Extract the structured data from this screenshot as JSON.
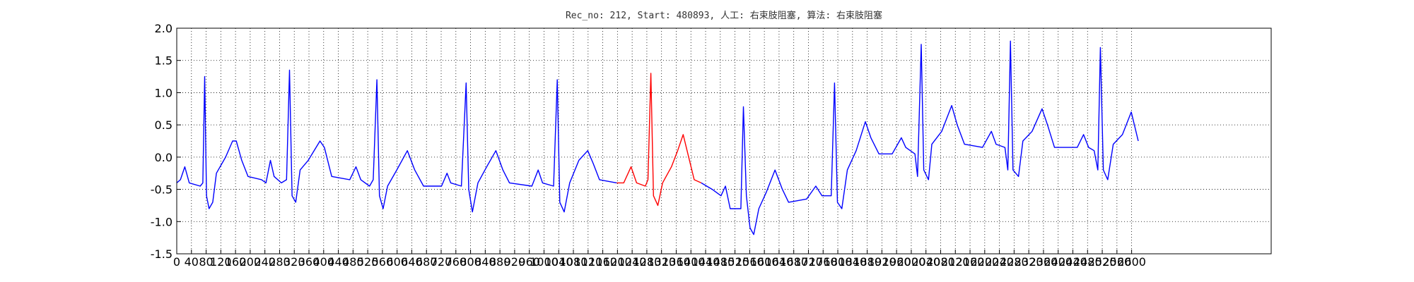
{
  "chart_data": {
    "type": "line",
    "title": "Rec_no: 212, Start: 480893, 人工: 右束肢阻塞, 算法: 右束肢阻塞",
    "xlim": [
      0,
      2980
    ],
    "ylim": [
      -1.5,
      2.0
    ],
    "xticks": [
      0,
      40,
      80,
      120,
      160,
      200,
      240,
      280,
      320,
      360,
      400,
      440,
      480,
      520,
      560,
      600,
      640,
      680,
      720,
      760,
      800,
      840,
      880,
      920,
      960,
      1000,
      1040,
      1080,
      1120,
      1160,
      1200,
      1240,
      1280,
      1320,
      1360,
      1400,
      1440,
      1480,
      1520,
      1560,
      1600,
      1640,
      1680,
      1720,
      1760,
      1800,
      1840,
      1880,
      1920,
      1960,
      2000,
      2040,
      2080,
      2120,
      2160,
      2200,
      2240,
      2280,
      2320,
      2360,
      2400,
      2440,
      2480,
      2520,
      2560,
      2600
    ],
    "yticks": [
      {
        "value": -1.5,
        "label": "-1.5"
      },
      {
        "value": -1.0,
        "label": "-1.0"
      },
      {
        "value": -0.5,
        "label": "-0.5"
      },
      {
        "value": 0.0,
        "label": "0.0"
      },
      {
        "value": 0.5,
        "label": "0.5"
      },
      {
        "value": 1.0,
        "label": "1.0"
      },
      {
        "value": 1.5,
        "label": "1.5"
      },
      {
        "value": 2.0,
        "label": "2.0"
      }
    ],
    "grid": true,
    "series": [
      {
        "color": "#0000ff",
        "x": [
          0,
          10,
          22,
          34,
          64,
          71,
          76,
          81,
          88,
          98,
          108,
          133,
          152,
          162,
          177,
          194,
          231,
          243,
          255,
          265,
          285,
          299,
          307,
          314,
          324,
          336,
          358,
          390,
          402,
          422,
          471,
          488,
          501,
          525,
          535,
          545,
          552,
          562,
          574,
          599,
          628,
          648,
          672,
          721,
          736,
          746,
          775,
          788,
          795,
          805,
          820,
          844,
          869,
          888,
          906,
          967,
          984,
          996,
          1026,
          1036,
          1043,
          1055,
          1070,
          1095,
          1119,
          1134,
          1151,
          1198,
          null,
          1428,
          1458,
          1482,
          1494,
          1507,
          1536,
          1543,
          1551,
          1561,
          1571,
          1585,
          1605,
          1629,
          1649,
          1666,
          1715,
          1740,
          1757,
          1782,
          1791,
          1799,
          1811,
          1826,
          1850,
          1875,
          1890,
          1912,
          1948,
          1973,
          1985,
          2010,
          2017,
          2027,
          2034,
          2047,
          2056,
          2083,
          2110,
          2125,
          2145,
          2194,
          2218,
          2231,
          2255,
          2263,
          2270,
          2277,
          2292,
          2304,
          2329,
          2356,
          2371,
          2390,
          2452,
          2469,
          2483,
          2498,
          2508,
          2515,
          2523,
          2535,
          2550,
          2575,
          2599,
          2618
        ],
        "values": [
          -0.4,
          -0.35,
          -0.15,
          -0.4,
          -0.45,
          -0.4,
          1.25,
          -0.6,
          -0.8,
          -0.7,
          -0.25,
          0.0,
          0.25,
          0.25,
          -0.05,
          -0.3,
          -0.35,
          -0.4,
          -0.05,
          -0.3,
          -0.4,
          -0.35,
          1.35,
          -0.6,
          -0.7,
          -0.2,
          -0.05,
          0.25,
          0.15,
          -0.3,
          -0.35,
          -0.15,
          -0.35,
          -0.45,
          -0.35,
          1.2,
          -0.6,
          -0.8,
          -0.45,
          -0.2,
          0.1,
          -0.2,
          -0.45,
          -0.45,
          -0.25,
          -0.4,
          -0.45,
          1.15,
          -0.5,
          -0.85,
          -0.4,
          -0.15,
          0.1,
          -0.2,
          -0.4,
          -0.45,
          -0.2,
          -0.4,
          -0.45,
          1.2,
          -0.7,
          -0.85,
          -0.4,
          -0.05,
          0.1,
          -0.1,
          -0.35,
          -0.4,
          null,
          -0.4,
          -0.5,
          -0.6,
          -0.45,
          -0.8,
          -0.8,
          0.78,
          -0.6,
          -1.1,
          -1.2,
          -0.8,
          -0.55,
          -0.2,
          -0.5,
          -0.7,
          -0.65,
          -0.45,
          -0.6,
          -0.6,
          1.15,
          -0.7,
          -0.8,
          -0.2,
          0.1,
          0.55,
          0.3,
          0.05,
          0.05,
          0.3,
          0.15,
          0.05,
          -0.3,
          1.75,
          -0.2,
          -0.35,
          0.2,
          0.4,
          0.8,
          0.5,
          0.2,
          0.15,
          0.4,
          0.2,
          0.15,
          -0.2,
          1.8,
          -0.2,
          -0.3,
          0.25,
          0.4,
          0.75,
          0.5,
          0.15,
          0.15,
          0.35,
          0.15,
          0.1,
          -0.2,
          1.7,
          -0.2,
          -0.35,
          0.2,
          0.35,
          0.7,
          0.25
        ]
      },
      {
        "color": "#ff0000",
        "x": [
          1198,
          1217,
          1237,
          1252,
          1276,
          1283,
          1291,
          1298,
          1310,
          1323,
          1347,
          1364,
          1379,
          1394,
          1409,
          1428
        ],
        "values": [
          -0.4,
          -0.4,
          -0.15,
          -0.4,
          -0.45,
          -0.35,
          1.3,
          -0.6,
          -0.75,
          -0.4,
          -0.15,
          0.1,
          0.35,
          0.0,
          -0.35,
          -0.4
        ]
      }
    ]
  }
}
